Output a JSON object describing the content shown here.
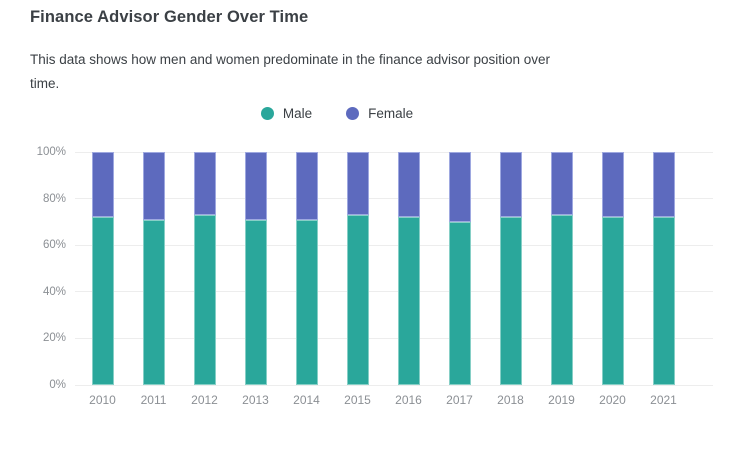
{
  "header": {
    "title": "Finance Advisor Gender Over Time",
    "subtitle": "This data shows how men and women predominate in the finance advisor position over time."
  },
  "legend": {
    "items": [
      {
        "label": "Male",
        "color": "#2aa79b"
      },
      {
        "label": "Female",
        "color": "#5d6abe"
      }
    ]
  },
  "chart_data": {
    "type": "bar",
    "stacked": true,
    "title": "Finance Advisor Gender Over Time",
    "subtitle": "This data shows how men and women predominate in the finance advisor position over time.",
    "categories": [
      "2010",
      "2011",
      "2012",
      "2013",
      "2014",
      "2015",
      "2016",
      "2017",
      "2018",
      "2019",
      "2020",
      "2021"
    ],
    "series": [
      {
        "name": "Male",
        "color": "#2aa79b",
        "border_color": "#86cfc6",
        "values": [
          72,
          71,
          73,
          71,
          71,
          73,
          72,
          70,
          72,
          73,
          72,
          72
        ]
      },
      {
        "name": "Female",
        "color": "#5d6abe",
        "border_color": "#9ea8e0",
        "values": [
          28,
          29,
          27,
          29,
          29,
          27,
          28,
          30,
          28,
          27,
          28,
          28
        ]
      }
    ],
    "xlabel": "",
    "ylabel": "",
    "ylim": [
      0,
      100
    ],
    "y_ticks": [
      "0%",
      "20%",
      "40%",
      "60%",
      "80%",
      "100%"
    ],
    "unit": "percent",
    "grid": true,
    "legend_position": "top-center"
  }
}
